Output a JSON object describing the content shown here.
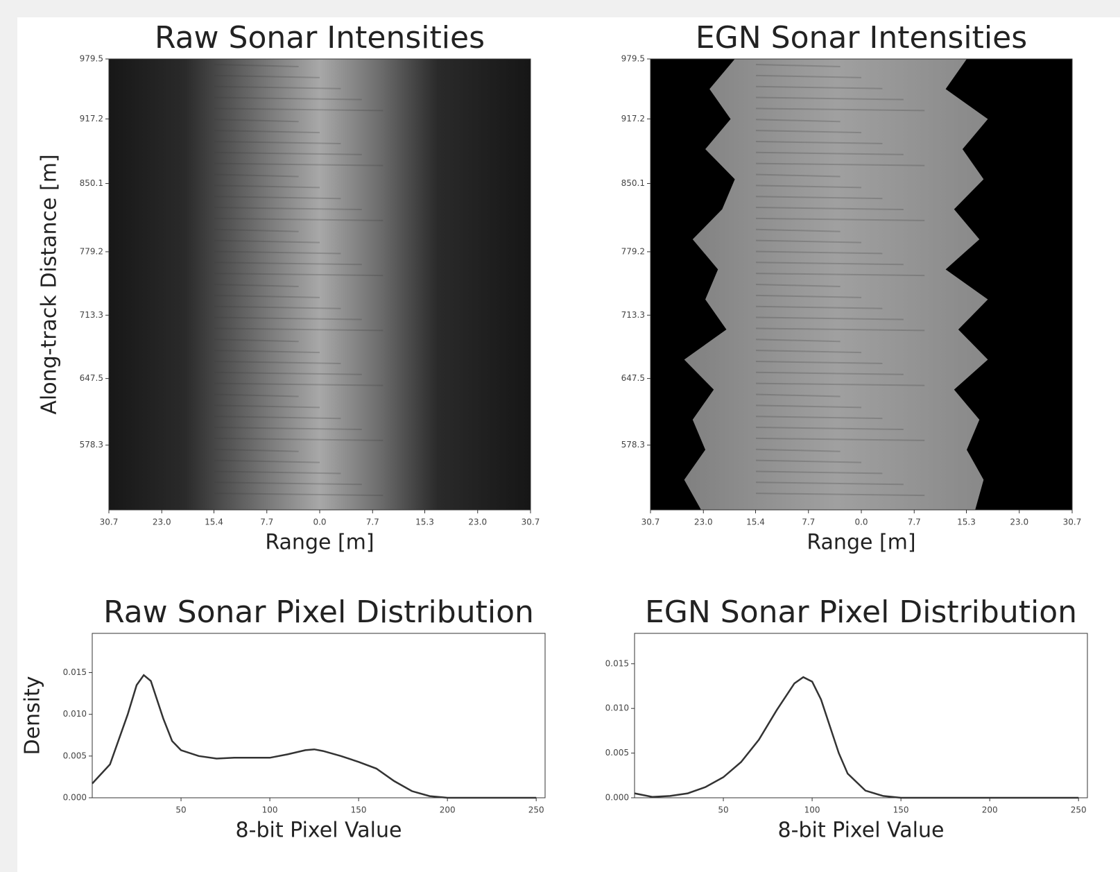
{
  "chart_data": [
    {
      "type": "image",
      "title": "Raw Sonar Intensities",
      "x_label": "Range [m]",
      "y_label": "Along-track Distance [m]",
      "xlim": [
        -30.7,
        30.7
      ],
      "ylim": [
        511,
        979.5
      ],
      "xticks": [
        {
          "value": -30.7,
          "label": "30.7"
        },
        {
          "value": -23,
          "label": "23.0"
        },
        {
          "value": -15.4,
          "label": "15.4"
        },
        {
          "value": -7.7,
          "label": "7.7"
        },
        {
          "value": 0,
          "label": "0.0"
        },
        {
          "value": 7.7,
          "label": "7.7"
        },
        {
          "value": 15.3,
          "label": "15.3"
        },
        {
          "value": 23,
          "label": "23.0"
        },
        {
          "value": 30.7,
          "label": "30.7"
        }
      ],
      "yticks": [
        979.5,
        917.2,
        850.1,
        779.2,
        713.3,
        647.5,
        578.3
      ]
    },
    {
      "type": "image",
      "title": "EGN Sonar Intensities",
      "x_label": "Range [m]",
      "xlim": [
        -30.7,
        30.7
      ],
      "ylim": [
        511,
        979.5
      ],
      "xticks": [
        {
          "value": -30.7,
          "label": "30.7"
        },
        {
          "value": -23,
          "label": "23.0"
        },
        {
          "value": -15.4,
          "label": "15.4"
        },
        {
          "value": -7.7,
          "label": "7.7"
        },
        {
          "value": 0,
          "label": "0.0"
        },
        {
          "value": 7.7,
          "label": "7.7"
        },
        {
          "value": 15.3,
          "label": "15.3"
        },
        {
          "value": 23,
          "label": "23.0"
        },
        {
          "value": 30.7,
          "label": "30.7"
        }
      ],
      "yticks": [
        979.5,
        917.2,
        850.1,
        779.2,
        713.3,
        647.5,
        578.3
      ]
    },
    {
      "type": "line",
      "title": "Raw Sonar Pixel Distribution",
      "x_label": "8-bit Pixel Value",
      "y_label": "Density",
      "xlim": [
        0,
        255
      ],
      "ylim": [
        0,
        0.0197
      ],
      "xticks": [
        50,
        100,
        150,
        200,
        250
      ],
      "yticks": [
        {
          "value": 0,
          "label": "0.000"
        },
        {
          "value": 0.005,
          "label": "0.005"
        },
        {
          "value": 0.01,
          "label": "0.010"
        },
        {
          "value": 0.015,
          "label": "0.015"
        }
      ],
      "color": "#333333",
      "x": [
        0,
        10,
        20,
        25,
        29,
        33,
        40,
        45,
        50,
        60,
        70,
        80,
        90,
        100,
        110,
        120,
        125,
        130,
        140,
        150,
        160,
        170,
        180,
        190,
        200,
        250
      ],
      "values": [
        0.0017,
        0.004,
        0.01,
        0.0135,
        0.0147,
        0.014,
        0.0095,
        0.0068,
        0.0057,
        0.005,
        0.0047,
        0.0048,
        0.0048,
        0.0048,
        0.0052,
        0.0057,
        0.0058,
        0.0056,
        0.005,
        0.0043,
        0.0035,
        0.002,
        0.0008,
        0.0002,
        0,
        0
      ]
    },
    {
      "type": "line",
      "title": "EGN Sonar Pixel Distribution",
      "x_label": "8-bit Pixel Value",
      "xlim": [
        0,
        255
      ],
      "ylim": [
        0,
        0.0184
      ],
      "xticks": [
        50,
        100,
        150,
        200,
        250
      ],
      "yticks": [
        {
          "value": 0,
          "label": "0.000"
        },
        {
          "value": 0.005,
          "label": "0.005"
        },
        {
          "value": 0.01,
          "label": "0.010"
        },
        {
          "value": 0.015,
          "label": "0.015"
        }
      ],
      "color": "#333333",
      "x": [
        0,
        10,
        20,
        30,
        40,
        50,
        60,
        70,
        80,
        90,
        95,
        100,
        105,
        110,
        115,
        120,
        130,
        140,
        150,
        200,
        250
      ],
      "values": [
        0.0005,
        0.0001,
        0.0002,
        0.0005,
        0.0012,
        0.0023,
        0.004,
        0.0065,
        0.0098,
        0.0128,
        0.0135,
        0.013,
        0.011,
        0.008,
        0.005,
        0.0027,
        0.0008,
        0.0002,
        0,
        0,
        0
      ]
    }
  ]
}
